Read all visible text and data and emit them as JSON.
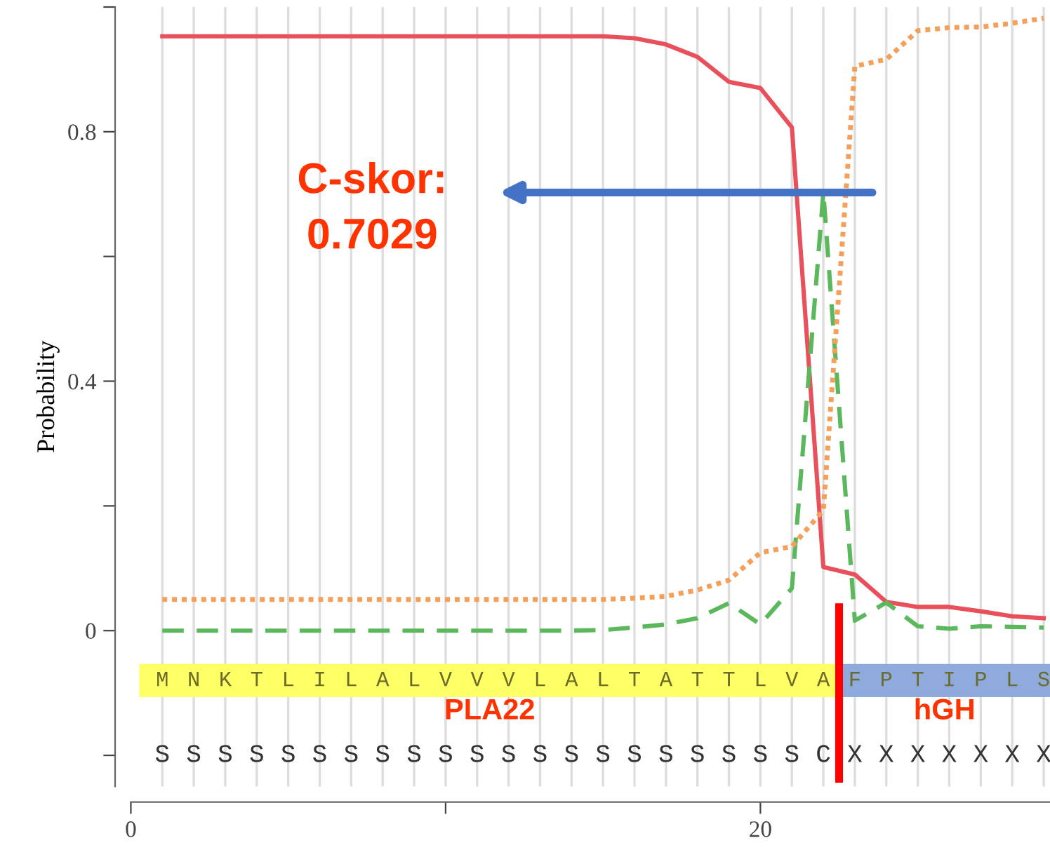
{
  "chart_data": {
    "type": "line",
    "ylabel": "Probability",
    "x": [
      1,
      2,
      3,
      4,
      5,
      6,
      7,
      8,
      9,
      10,
      11,
      12,
      13,
      14,
      15,
      16,
      17,
      18,
      19,
      20,
      21,
      22,
      23,
      24,
      25,
      26,
      27,
      28,
      29
    ],
    "series": [
      {
        "color": "#e8505b",
        "line_style": "solid",
        "values": [
          0.953,
          0.953,
          0.953,
          0.953,
          0.953,
          0.953,
          0.953,
          0.953,
          0.953,
          0.953,
          0.953,
          0.953,
          0.953,
          0.953,
          0.953,
          0.95,
          0.94,
          0.92,
          0.88,
          0.87,
          0.807,
          0.102,
          0.09,
          0.046,
          0.038,
          0.038,
          0.031,
          0.023,
          0.02
        ]
      },
      {
        "color": "#5cb85c",
        "line_style": "dashed",
        "values": [
          0,
          0,
          0,
          0,
          0,
          0,
          0,
          0,
          0,
          0,
          0,
          0,
          0,
          0,
          0.001,
          0.005,
          0.01,
          0.02,
          0.044,
          0.01,
          0.068,
          0.7029,
          0.016,
          0.045,
          0.007,
          0.003,
          0.007,
          0.006,
          0.005
        ]
      },
      {
        "color": "#f5a05a",
        "line_style": "dotted",
        "values": [
          0.05,
          0.05,
          0.05,
          0.05,
          0.05,
          0.05,
          0.05,
          0.05,
          0.05,
          0.05,
          0.05,
          0.05,
          0.05,
          0.05,
          0.05,
          0.052,
          0.055,
          0.065,
          0.081,
          0.125,
          0.135,
          0.193,
          0.905,
          0.916,
          0.962,
          0.967,
          0.968,
          0.974,
          0.982
        ]
      }
    ],
    "xlim": [
      -0.5,
      29.2
    ],
    "xticks": [
      0,
      {
        "value": 10,
        "label": null
      },
      20
    ],
    "ylim": [
      -0.25,
      1.0
    ],
    "yticks": [
      {
        "value": -0.2,
        "label": null
      },
      0,
      {
        "value": 0.2,
        "label": null
      },
      0.4,
      {
        "value": 0.6,
        "label": null
      },
      0.8,
      {
        "value": 1.0,
        "label": null
      }
    ],
    "grid": "x",
    "ref_lines": [
      {
        "axis": "x",
        "value": 22.5,
        "color": "#ff0000"
      }
    ],
    "bands": [
      {
        "axis": "x",
        "from": 0.3,
        "to": 22.5,
        "label": "PLA22",
        "color": "#ffff66"
      },
      {
        "axis": "x",
        "from": 22.5,
        "to": 29.2,
        "label": "hGH",
        "color": "#8faadc"
      }
    ],
    "annotations": [
      "C-skor:\n0.7029",
      "M",
      "N",
      "K",
      "T",
      "L",
      "I",
      "L",
      "A",
      "L",
      "V",
      "V",
      "V",
      "L",
      "A",
      "L",
      "T",
      "A",
      "T",
      "T",
      "L",
      "V",
      "A",
      "F",
      "P",
      "T",
      "I",
      "P",
      "L",
      "S",
      "S",
      "S",
      "S",
      "S",
      "S",
      "S",
      "S",
      "S",
      "S",
      "S",
      "S",
      "S",
      "S",
      "S",
      "S",
      "S",
      "S",
      "S",
      "S",
      "S",
      "S",
      "C",
      "X",
      "X",
      "X",
      "X",
      "X",
      "X",
      "X"
    ]
  }
}
